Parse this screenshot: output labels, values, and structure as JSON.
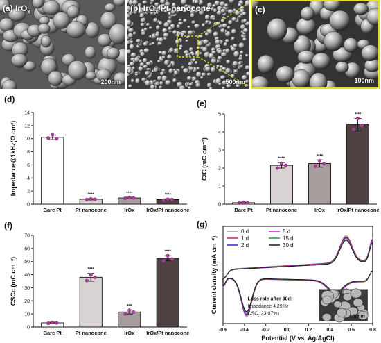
{
  "sem_panels": [
    {
      "label": "(a) IrO",
      "sub": "x",
      "label_rest": "",
      "scale": "200nm"
    },
    {
      "label": "(b) IrO",
      "sub": "x",
      "label_rest": "/Pt nanocone",
      "scale": "500nm"
    },
    {
      "label": "(c)",
      "sub": "",
      "label_rest": "",
      "scale": "100nm"
    }
  ],
  "colors": {
    "bare_pt": "#ffffff",
    "pt_nanocone": "#d9d2d2",
    "irox": "#a89d9d",
    "irox_pt": "#4f4141",
    "dots": "#a23c8e",
    "inset_highlight": "#e3e21a"
  },
  "chart_data": [
    {
      "id": "d",
      "panel_label": "(d)",
      "type": "bar",
      "ylabel": "Impedance@1kHz(Ω cm²)",
      "ylim": [
        0,
        14
      ],
      "yticks": [
        0,
        2,
        4,
        6,
        8,
        10,
        12,
        14
      ],
      "categories": [
        "Bare Pt",
        "Pt nanocone",
        "IrOx",
        "IrOx/Pt nanocone"
      ],
      "values": [
        10.2,
        0.75,
        0.95,
        0.7
      ],
      "errors": [
        0.35,
        0.1,
        0.12,
        0.12
      ],
      "points": [
        [
          10.1,
          10.6,
          10.0
        ],
        [
          0.7,
          0.8,
          0.75
        ],
        [
          0.9,
          1.0,
          0.95
        ],
        [
          0.6,
          0.75,
          0.7
        ]
      ],
      "significance": [
        "",
        "****",
        "****",
        "****"
      ]
    },
    {
      "id": "e",
      "panel_label": "(e)",
      "type": "bar",
      "ylabel": "CIC (mC cm⁻²)",
      "ylim": [
        0,
        5
      ],
      "yticks": [
        0,
        1,
        2,
        3,
        4,
        5
      ],
      "categories": [
        "Bare Pt",
        "Pt nanocone",
        "IrOx",
        "IrOx/Pt nanocone"
      ],
      "values": [
        0.08,
        2.15,
        2.25,
        4.4
      ],
      "errors": [
        0.03,
        0.15,
        0.2,
        0.35
      ],
      "points": [
        [
          0.06,
          0.1,
          0.08
        ],
        [
          2.0,
          2.25,
          2.15
        ],
        [
          2.1,
          2.4,
          2.25
        ],
        [
          4.15,
          4.75,
          4.35
        ]
      ],
      "significance": [
        "",
        "****",
        "****",
        "****"
      ]
    },
    {
      "id": "f",
      "panel_label": "(f)",
      "type": "bar",
      "ylabel": "CSCc (mC cm⁻²)",
      "ylim": [
        0,
        70
      ],
      "yticks": [
        0,
        10,
        20,
        30,
        40,
        50,
        60,
        70
      ],
      "categories": [
        "Bare Pt",
        "Pt nanocone",
        "IrOx",
        "IrOx/Pt nanocone"
      ],
      "values": [
        3.2,
        38.0,
        11.5,
        52.5
      ],
      "errors": [
        0.5,
        3.0,
        1.5,
        2.0
      ],
      "points": [
        [
          2.9,
          3.5,
          3.2
        ],
        [
          35.5,
          40.0,
          38.0
        ],
        [
          10.0,
          12.8,
          11.5
        ],
        [
          50.5,
          54.5,
          52.0
        ]
      ],
      "significance": [
        "",
        "****",
        "***",
        "****"
      ]
    },
    {
      "id": "g",
      "panel_label": "(g)",
      "type": "line",
      "xlabel": "Potential (V vs. Ag/AgCl)",
      "ylabel": "Current density (mA cm⁻²)",
      "xlim": [
        -0.6,
        0.8
      ],
      "xticks": [
        -0.6,
        -0.4,
        -0.2,
        0.0,
        0.2,
        0.4,
        0.6,
        0.8
      ],
      "ylim": [
        -6.8,
        6.5
      ],
      "series": [
        {
          "name": "0 d",
          "color": "#9e9e9e",
          "scale": 1.0
        },
        {
          "name": "1 d",
          "color": "#e02020",
          "scale": 0.97
        },
        {
          "name": "2 d",
          "color": "#2b2bd6",
          "scale": 0.95
        },
        {
          "name": "5 d",
          "color": "#e020e0",
          "scale": 0.93
        },
        {
          "name": "15 d",
          "color": "#1a9a2a",
          "scale": 0.9
        },
        {
          "name": "30 d",
          "color": "#1a1a1a",
          "scale": 0.88
        }
      ],
      "annotation": [
        "Loss rate after 30d:",
        "Impedance 4.29%↑",
        "CSC",
        "c",
        " 23.07%↓"
      ],
      "inset_scale": "100nm"
    }
  ]
}
